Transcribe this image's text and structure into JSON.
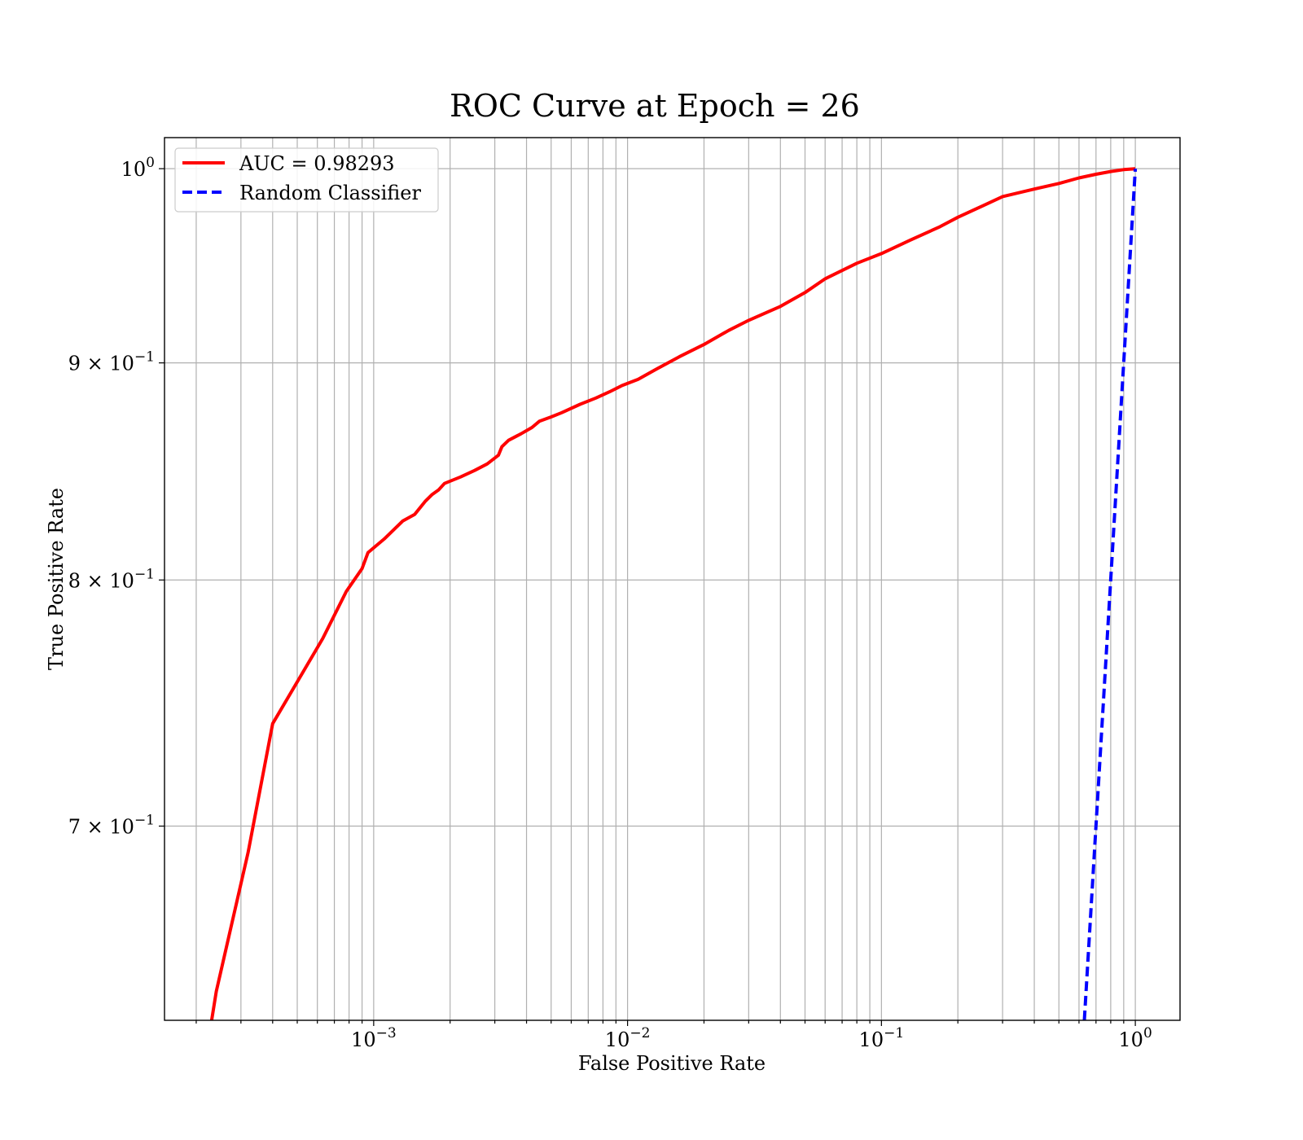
{
  "chart_data": {
    "type": "line",
    "title": "ROC Curve at Epoch = 26",
    "xlabel": "False Positive Rate",
    "ylabel": "True Positive Rate",
    "xscale": "log",
    "yscale": "log",
    "xlim": [
      0.00015,
      1.5
    ],
    "ylim": [
      0.63,
      1.017
    ],
    "grid": "both, major and minor",
    "legend_position": "upper-left",
    "x_ticks": [
      {
        "base": "10",
        "exp": "−3",
        "value": 0.001
      },
      {
        "base": "10",
        "exp": "−2",
        "value": 0.01
      },
      {
        "base": "10",
        "exp": "−1",
        "value": 0.1
      },
      {
        "base": "10",
        "exp": "0",
        "value": 1
      }
    ],
    "y_ticks": [
      {
        "mant": "7 × 10",
        "exp": "−1",
        "value": 0.7
      },
      {
        "mant": "8 × 10",
        "exp": "−1",
        "value": 0.8
      },
      {
        "mant": "9 × 10",
        "exp": "−1",
        "value": 0.9
      },
      {
        "mant": "10",
        "exp": "0",
        "value": 1.0
      }
    ],
    "series": [
      {
        "name": "AUC = 0.98293",
        "color": "#ff0000",
        "style": "solid",
        "x": [
          0.00023,
          0.00024,
          0.00032,
          0.0004,
          0.00052,
          0.00063,
          0.00078,
          0.0009,
          0.00095,
          0.0011,
          0.0013,
          0.00145,
          0.0016,
          0.0017,
          0.0018,
          0.0019,
          0.0022,
          0.0025,
          0.0028,
          0.0031,
          0.0032,
          0.0034,
          0.0038,
          0.0042,
          0.0045,
          0.005,
          0.0055,
          0.0065,
          0.0075,
          0.0085,
          0.0095,
          0.011,
          0.013,
          0.016,
          0.02,
          0.025,
          0.03,
          0.04,
          0.05,
          0.06,
          0.08,
          0.1,
          0.13,
          0.17,
          0.2,
          0.25,
          0.3,
          0.4,
          0.5,
          0.6,
          0.7,
          0.8,
          0.9,
          1.0
        ],
        "y": [
          0.63,
          0.64,
          0.69,
          0.74,
          0.76,
          0.775,
          0.795,
          0.805,
          0.812,
          0.818,
          0.826,
          0.829,
          0.835,
          0.838,
          0.84,
          0.843,
          0.846,
          0.849,
          0.852,
          0.856,
          0.86,
          0.863,
          0.866,
          0.869,
          0.872,
          0.874,
          0.876,
          0.88,
          0.883,
          0.886,
          0.889,
          0.892,
          0.897,
          0.903,
          0.909,
          0.916,
          0.921,
          0.928,
          0.935,
          0.942,
          0.95,
          0.955,
          0.962,
          0.969,
          0.974,
          0.98,
          0.985,
          0.989,
          0.992,
          0.995,
          0.997,
          0.9985,
          0.9995,
          1.0
        ]
      },
      {
        "name": "Random Classifier",
        "color": "#0000ff",
        "style": "dashed",
        "x": [
          0.63,
          1.0
        ],
        "y": [
          0.63,
          1.0
        ]
      }
    ]
  }
}
